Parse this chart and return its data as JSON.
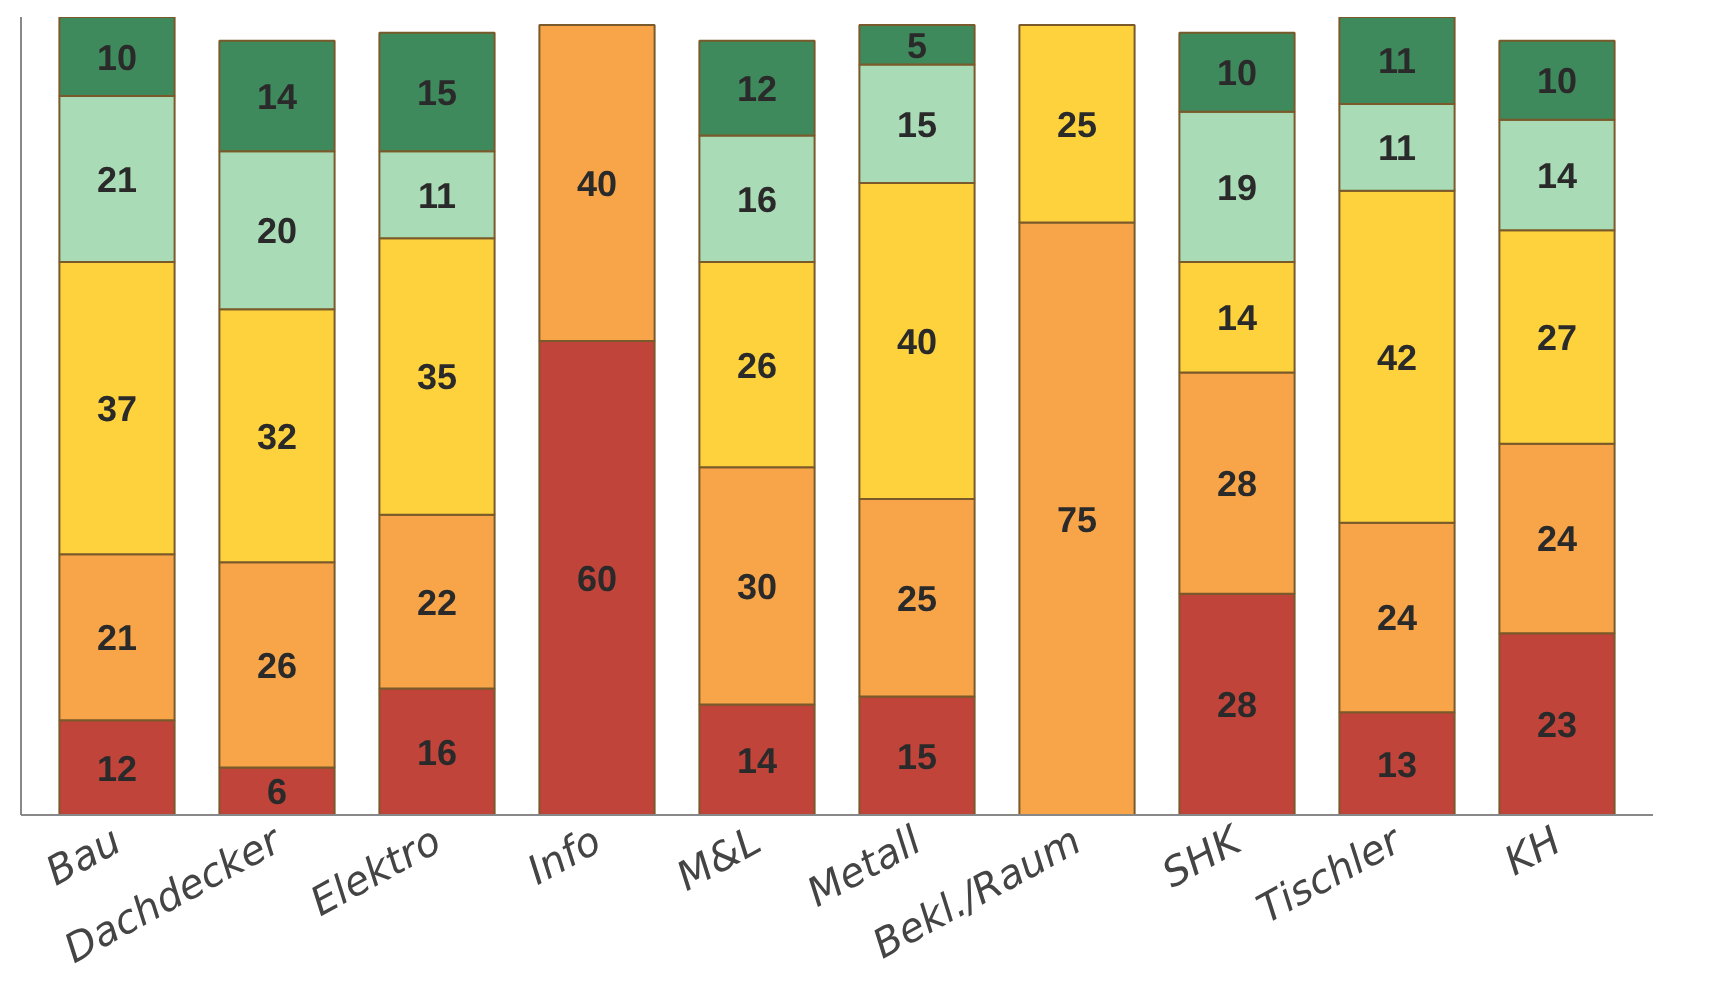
{
  "chart_data": {
    "type": "bar",
    "stacked": true,
    "data_labels": true,
    "tick_labels": "x",
    "grid": false,
    "ylim": [
      0,
      101
    ],
    "categories": [
      "Bau",
      "Dachdecker",
      "Elektro",
      "Info",
      "M&L",
      "Metall",
      "Bekl./Raum",
      "SHK",
      "Tischler",
      "KH"
    ],
    "series": [
      {
        "color": "#c0443a",
        "values": [
          12,
          6,
          16,
          60,
          14,
          15,
          null,
          28,
          13,
          23
        ]
      },
      {
        "color": "#f7a548",
        "values": [
          21,
          26,
          22,
          40,
          30,
          25,
          75,
          28,
          24,
          24
        ]
      },
      {
        "color": "#fdd23c",
        "values": [
          37,
          32,
          35,
          null,
          26,
          40,
          25,
          14,
          42,
          27
        ]
      },
      {
        "color": "#a9dcb6",
        "values": [
          21,
          20,
          11,
          null,
          16,
          15,
          null,
          19,
          11,
          14
        ]
      },
      {
        "color": "#3f8a5c",
        "values": [
          10,
          14,
          15,
          null,
          12,
          5,
          null,
          10,
          11,
          10
        ]
      }
    ]
  }
}
